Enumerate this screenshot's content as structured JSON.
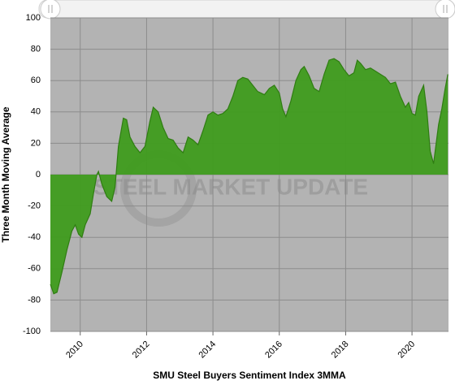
{
  "chart_data": {
    "type": "area",
    "xlabel": "SMU Steel Buyers Sentiment Index 3MMA",
    "ylabel": "Three Month Moving Average",
    "watermark": "STEEL MARKET UPDATE",
    "xlim": [
      2009.1,
      2021.1
    ],
    "xticks": [
      2010,
      2012,
      2014,
      2016,
      2018,
      2020
    ],
    "ylim": [
      -100,
      100
    ],
    "yticks": [
      -100,
      -80,
      -60,
      -40,
      -20,
      0,
      20,
      40,
      60,
      80,
      100
    ],
    "grid": true,
    "background": "#b3b3b3",
    "series": [
      {
        "name": "SMU Steel Buyers Sentiment Index 3MMA",
        "color": "#3f9c1e",
        "x": [
          2009.1,
          2009.2,
          2009.3,
          2009.45,
          2009.6,
          2009.75,
          2009.85,
          2009.95,
          2010.05,
          2010.15,
          2010.3,
          2010.4,
          2010.5,
          2010.55,
          2010.65,
          2010.8,
          2010.95,
          2011.05,
          2011.15,
          2011.3,
          2011.4,
          2011.5,
          2011.65,
          2011.8,
          2011.95,
          2012.1,
          2012.2,
          2012.35,
          2012.5,
          2012.65,
          2012.8,
          2012.95,
          2013.1,
          2013.25,
          2013.4,
          2013.55,
          2013.7,
          2013.85,
          2014.0,
          2014.15,
          2014.3,
          2014.45,
          2014.6,
          2014.75,
          2014.9,
          2015.05,
          2015.2,
          2015.35,
          2015.55,
          2015.7,
          2015.85,
          2016.0,
          2016.1,
          2016.2,
          2016.35,
          2016.5,
          2016.65,
          2016.75,
          2016.9,
          2017.05,
          2017.2,
          2017.35,
          2017.5,
          2017.65,
          2017.8,
          2017.95,
          2018.1,
          2018.25,
          2018.35,
          2018.45,
          2018.6,
          2018.75,
          2018.9,
          2019.05,
          2019.2,
          2019.35,
          2019.5,
          2019.65,
          2019.8,
          2019.9,
          2020.0,
          2020.1,
          2020.2,
          2020.35,
          2020.45,
          2020.55,
          2020.65,
          2020.8,
          2020.9,
          2021.0,
          2021.08
        ],
        "values": [
          -70,
          -76,
          -75,
          -62,
          -48,
          -36,
          -32,
          -38,
          -40,
          -32,
          -25,
          -12,
          0,
          2,
          -6,
          -14,
          -17,
          -8,
          18,
          36,
          35,
          24,
          18,
          14,
          18,
          34,
          43,
          40,
          30,
          23,
          22,
          17,
          14,
          24,
          22,
          19,
          28,
          38,
          40,
          38,
          39,
          42,
          50,
          60,
          62,
          61,
          57,
          53,
          51,
          55,
          57,
          52,
          42,
          37,
          47,
          60,
          67,
          69,
          63,
          55,
          53,
          64,
          73,
          74,
          72,
          67,
          63,
          65,
          73,
          71,
          67,
          68,
          66,
          64,
          62,
          58,
          59,
          50,
          43,
          46,
          39,
          38,
          50,
          57,
          40,
          15,
          7,
          32,
          42,
          55,
          64
        ]
      }
    ]
  }
}
